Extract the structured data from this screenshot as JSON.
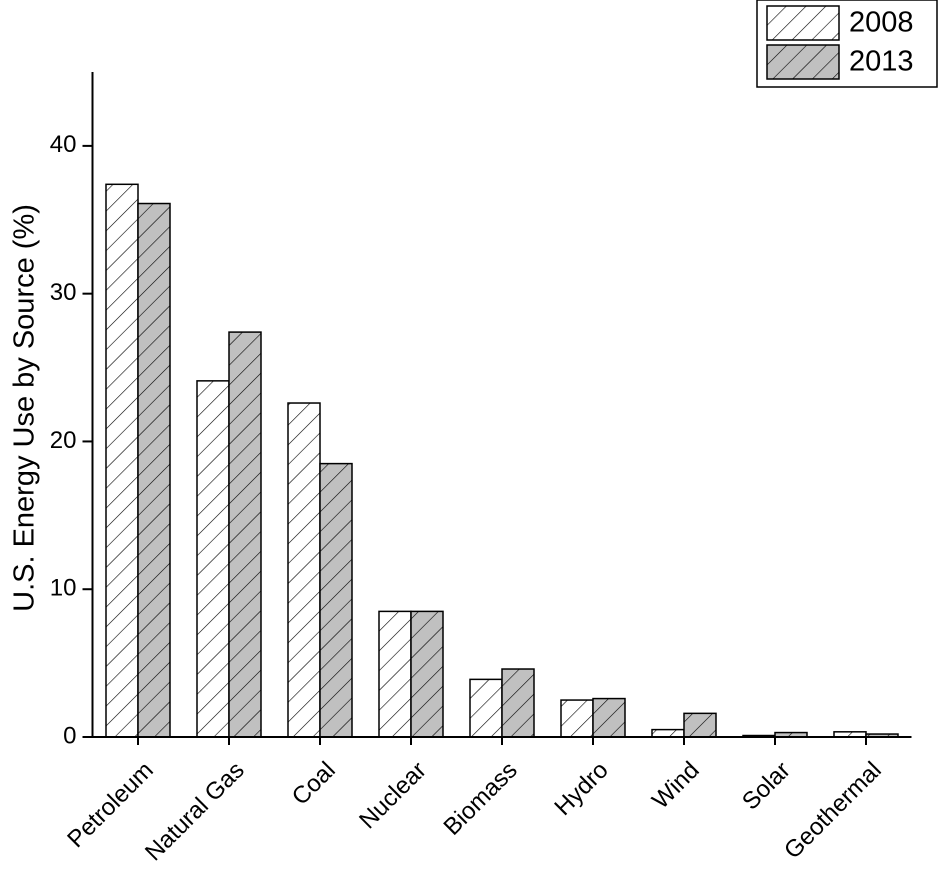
{
  "chart_data": {
    "type": "bar",
    "y_label": "U.S. Energy Use by Source (%)",
    "categories": [
      "Petroleum",
      "Natural Gas",
      "Coal",
      "Nuclear",
      "Biomass",
      "Hydro",
      "Wind",
      "Solar",
      "Geothermal"
    ],
    "series": [
      {
        "name": "2008",
        "color": "#ffffff",
        "values": [
          37.4,
          24.1,
          22.6,
          8.5,
          3.9,
          2.5,
          0.5,
          0.1,
          0.35
        ]
      },
      {
        "name": "2013",
        "color": "#c0c0c0",
        "values": [
          36.1,
          27.4,
          18.5,
          8.5,
          4.6,
          2.6,
          1.6,
          0.3,
          0.2
        ]
      }
    ],
    "ylim": [
      0,
      45
    ],
    "yticks": [
      0,
      10,
      20,
      30,
      40
    ],
    "legend": "upper right",
    "hatch": true
  }
}
